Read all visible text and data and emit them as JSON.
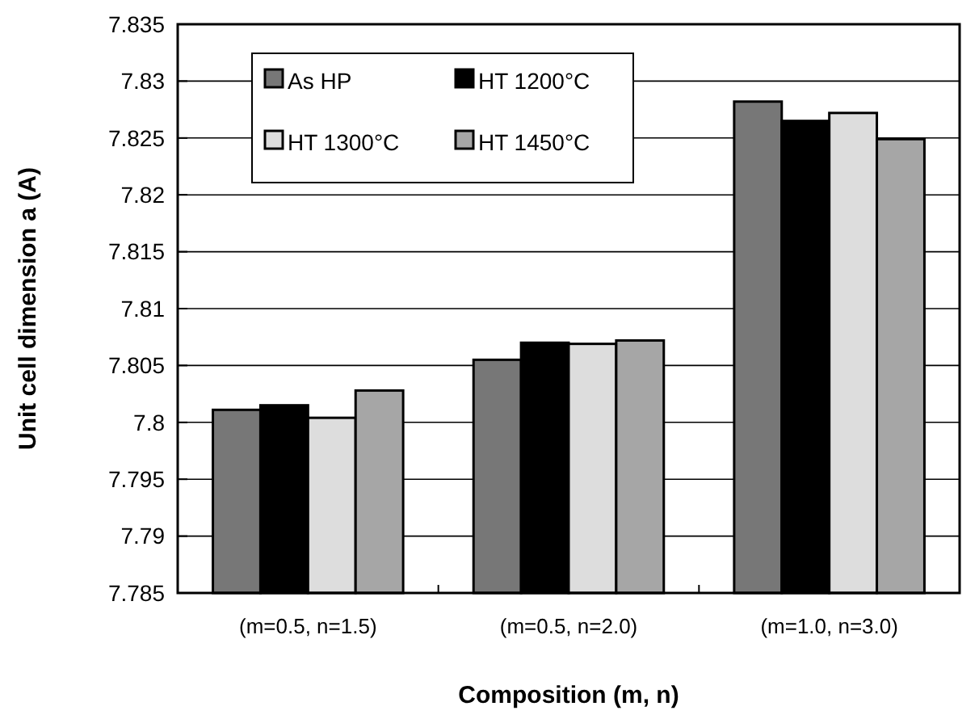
{
  "chart_data": {
    "type": "bar",
    "xlabel": "Composition (m, n)",
    "ylabel": "Unit cell dimension a (A)",
    "categories": [
      "(m=0.5, n=1.5)",
      "(m=0.5, n=2.0)",
      "(m=1.0, n=3.0)"
    ],
    "series": [
      {
        "name": "As HP",
        "color": "#777777",
        "values": [
          7.8011,
          7.8055,
          7.8282
        ]
      },
      {
        "name": "HT 1200°C",
        "color": "#000000",
        "values": [
          7.8015,
          7.807,
          7.8265
        ]
      },
      {
        "name": "HT 1300°C",
        "color": "#dddddd",
        "values": [
          7.8004,
          7.8069,
          7.8272
        ]
      },
      {
        "name": "HT 1450°C",
        "color": "#a6a6a6",
        "values": [
          7.8028,
          7.8072,
          7.8249
        ]
      }
    ],
    "ylim": [
      7.785,
      7.835
    ],
    "yticks": [
      7.785,
      7.79,
      7.795,
      7.8,
      7.805,
      7.81,
      7.815,
      7.82,
      7.825,
      7.83,
      7.835
    ],
    "grid": "y",
    "legend": "top left"
  }
}
